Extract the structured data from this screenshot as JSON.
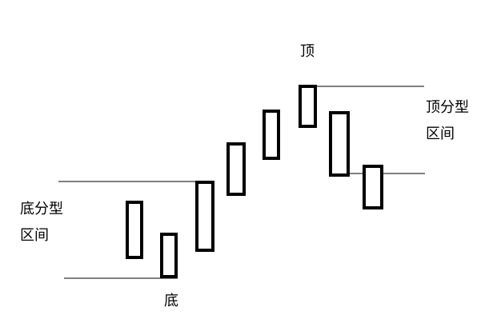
{
  "labels": {
    "top": "顶",
    "bottom": "底",
    "top_fractal_line1": "顶分型",
    "top_fractal_line2": "区间",
    "bottom_fractal_line1": "底分型",
    "bottom_fractal_line2": "区间"
  },
  "colors": {
    "stroke": "#000000",
    "background": "#ffffff"
  }
}
